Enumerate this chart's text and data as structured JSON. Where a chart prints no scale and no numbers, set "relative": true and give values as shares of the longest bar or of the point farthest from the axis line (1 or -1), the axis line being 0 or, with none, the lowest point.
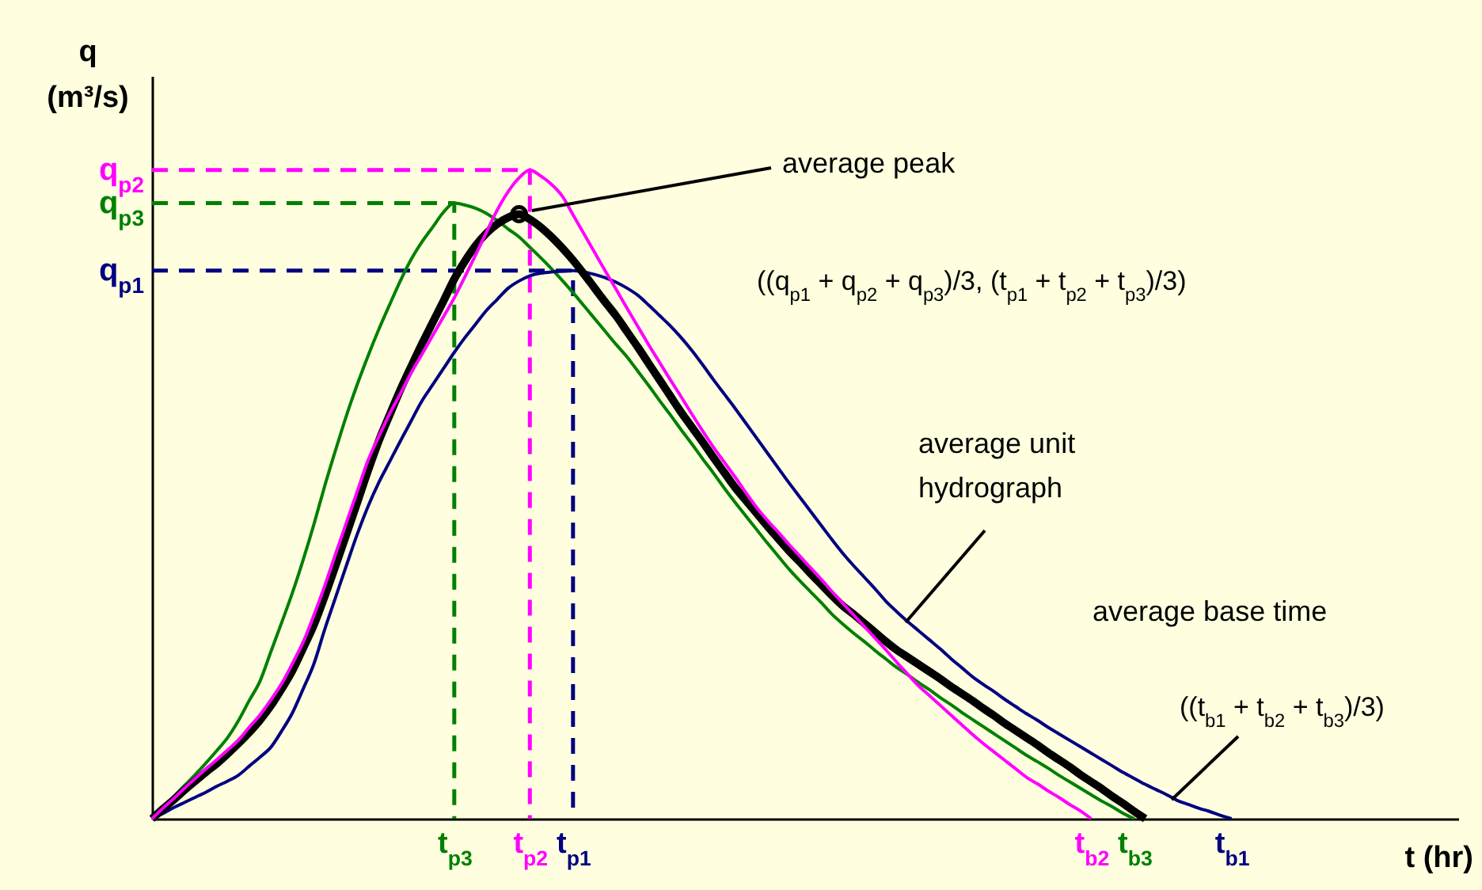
{
  "chart_data": {
    "type": "line",
    "relative": true,
    "xlabel": "t (hr)",
    "ylabel": "q (m³/s)",
    "categories": [
      null,
      null,
      null,
      null,
      null,
      null,
      null,
      null,
      null,
      null,
      null,
      null,
      null,
      null,
      null,
      null,
      null,
      null,
      null,
      null,
      null,
      null,
      null,
      null,
      null,
      null,
      null,
      null,
      "t$_{p3}$",
      null,
      null,
      null,
      null,
      null,
      null,
      "t$_{p2}$",
      null,
      null,
      null,
      "t$_{p1}$",
      null,
      null,
      null,
      null,
      null,
      null,
      null,
      null,
      null,
      null,
      null,
      null,
      null,
      null,
      null,
      null,
      null,
      null,
      null,
      null,
      null,
      null,
      null,
      null,
      null,
      null,
      null,
      null,
      null,
      null,
      null,
      null,
      null,
      null,
      null,
      null,
      null,
      null,
      null,
      null,
      null,
      null,
      null,
      null,
      null,
      null,
      null,
      "t$_{b2}$",
      null,
      null,
      null,
      "t$_{b3}$",
      null,
      null,
      null,
      null,
      null,
      null,
      null,
      null,
      "t$_{b1}$",
      null,
      null,
      null,
      null,
      null,
      null,
      null,
      null,
      null,
      null,
      null,
      null,
      null,
      null,
      null,
      null,
      null,
      null,
      null,
      null,
      null
    ],
    "series": [
      {
        "type": "step",
        "line_style": "dashed",
        "color": "#ff00ff",
        "values": [
          1,
          1,
          1,
          1,
          1,
          1,
          1,
          1,
          1,
          1,
          1,
          1,
          1,
          1,
          1,
          1,
          1,
          1,
          1,
          1,
          1,
          1,
          1,
          1,
          1,
          1,
          1,
          1,
          1,
          1,
          1,
          1,
          1,
          1,
          1,
          0,
          null,
          null,
          null,
          null,
          null,
          null,
          null,
          null,
          null,
          null,
          null,
          null,
          null,
          null,
          null,
          null,
          null,
          null,
          null,
          null,
          null,
          null,
          null,
          null,
          null,
          null,
          null,
          null,
          null,
          null,
          null,
          null,
          null,
          null,
          null,
          null,
          null,
          null,
          null,
          null,
          null,
          null,
          null,
          null,
          null,
          null,
          null,
          null,
          null,
          null,
          null,
          null,
          null,
          null,
          null,
          null,
          null,
          null,
          null,
          null,
          null,
          null,
          null,
          null,
          null,
          null,
          null,
          null,
          null,
          null,
          null,
          null,
          null,
          null,
          null,
          null,
          null,
          null,
          null,
          null,
          null,
          null,
          null,
          null,
          null,
          null
        ]
      },
      {
        "type": "step",
        "line_style": "dashed",
        "color": "#008000",
        "values": [
          0.949,
          0.949,
          0.949,
          0.949,
          0.949,
          0.949,
          0.949,
          0.949,
          0.949,
          0.949,
          0.949,
          0.949,
          0.949,
          0.949,
          0.949,
          0.949,
          0.949,
          0.949,
          0.949,
          0.949,
          0.949,
          0.949,
          0.949,
          0.949,
          0.949,
          0.949,
          0.949,
          0.949,
          0,
          null,
          null,
          null,
          null,
          null,
          null,
          null,
          null,
          null,
          null,
          null,
          null,
          null,
          null,
          null,
          null,
          null,
          null,
          null,
          null,
          null,
          null,
          null,
          null,
          null,
          null,
          null,
          null,
          null,
          null,
          null,
          null,
          null,
          null,
          null,
          null,
          null,
          null,
          null,
          null,
          null,
          null,
          null,
          null,
          null,
          null,
          null,
          null,
          null,
          null,
          null,
          null,
          null,
          null,
          null,
          null,
          null,
          null,
          null,
          null,
          null,
          null,
          null,
          null,
          null,
          null,
          null,
          null,
          null,
          null,
          null,
          null,
          null,
          null,
          null,
          null,
          null,
          null,
          null,
          null,
          null,
          null,
          null,
          null,
          null,
          null,
          null,
          null,
          null,
          null,
          null,
          null,
          null
        ]
      },
      {
        "type": "step",
        "line_style": "dashed",
        "color": "#000080",
        "values": [
          0.845,
          0.845,
          0.845,
          0.845,
          0.845,
          0.845,
          0.845,
          0.845,
          0.845,
          0.845,
          0.845,
          0.845,
          0.845,
          0.845,
          0.845,
          0.845,
          0.845,
          0.845,
          0.845,
          0.845,
          0.845,
          0.845,
          0.845,
          0.845,
          0.845,
          0.845,
          0.845,
          0.845,
          0.845,
          0.845,
          0.845,
          0.845,
          0.845,
          0.845,
          0.845,
          0.845,
          0.845,
          0.845,
          0.845,
          0,
          null,
          null,
          null,
          null,
          null,
          null,
          null,
          null,
          null,
          null,
          null,
          null,
          null,
          null,
          null,
          null,
          null,
          null,
          null,
          null,
          null,
          null,
          null,
          null,
          null,
          null,
          null,
          null,
          null,
          null,
          null,
          null,
          null,
          null,
          null,
          null,
          null,
          null,
          null,
          null,
          null,
          null,
          null,
          null,
          null,
          null,
          null,
          null,
          null,
          null,
          null,
          null,
          null,
          null,
          null,
          null,
          null,
          null,
          null,
          null,
          null,
          null,
          null,
          null,
          null,
          null,
          null,
          null,
          null,
          null,
          null,
          null,
          null,
          null,
          null,
          null,
          null,
          null,
          null,
          null,
          null,
          null
        ]
      },
      {
        "type": "line",
        "color": "#008000",
        "values": [
          0,
          0.017,
          0.034,
          0.051,
          0.068,
          0.086,
          0.105,
          0.125,
          0.151,
          0.182,
          0.212,
          0.257,
          0.302,
          0.348,
          0.399,
          0.454,
          0.513,
          0.568,
          0.621,
          0.669,
          0.713,
          0.754,
          0.792,
          0.829,
          0.862,
          0.889,
          0.912,
          0.935,
          0.949,
          0.946,
          0.941,
          0.933,
          0.922,
          0.909,
          0.897,
          0.881,
          0.865,
          0.848,
          0.83,
          0.811,
          0.791,
          0.771,
          0.751,
          0.731,
          0.712,
          0.69,
          0.668,
          0.645,
          0.623,
          0.6,
          0.578,
          0.555,
          0.533,
          0.51,
          0.488,
          0.467,
          0.446,
          0.425,
          0.405,
          0.385,
          0.367,
          0.35,
          0.333,
          0.315,
          0.3,
          0.286,
          0.273,
          0.259,
          0.246,
          0.233,
          0.222,
          0.21,
          0.199,
          0.187,
          0.176,
          0.164,
          0.153,
          0.142,
          0.131,
          0.12,
          0.109,
          0.098,
          0.088,
          0.078,
          0.067,
          0.057,
          0.047,
          0.037,
          0.027,
          0.018,
          0.008,
          0,
          null,
          null,
          null,
          null,
          null,
          null,
          null,
          null,
          null,
          null,
          null,
          null,
          null,
          null,
          null,
          null,
          null,
          null,
          null,
          null,
          null,
          null,
          null,
          null,
          null,
          null,
          null,
          null,
          null,
          null
        ]
      },
      {
        "type": "line",
        "color": "#000080",
        "values": [
          0,
          0.008,
          0.017,
          0.025,
          0.033,
          0.041,
          0.05,
          0.058,
          0.067,
          0.081,
          0.095,
          0.11,
          0.135,
          0.163,
          0.2,
          0.239,
          0.292,
          0.341,
          0.39,
          0.438,
          0.481,
          0.518,
          0.55,
          0.582,
          0.613,
          0.644,
          0.669,
          0.694,
          0.719,
          0.742,
          0.763,
          0.784,
          0.801,
          0.818,
          0.829,
          0.837,
          0.841,
          0.843,
          0.844,
          0.845,
          0.843,
          0.839,
          0.834,
          0.827,
          0.818,
          0.807,
          0.792,
          0.776,
          0.76,
          0.742,
          0.722,
          0.7,
          0.677,
          0.655,
          0.633,
          0.61,
          0.587,
          0.564,
          0.541,
          0.518,
          0.496,
          0.474,
          0.452,
          0.43,
          0.409,
          0.39,
          0.372,
          0.354,
          0.335,
          0.319,
          0.304,
          0.29,
          0.276,
          0.262,
          0.247,
          0.233,
          0.219,
          0.207,
          0.196,
          0.184,
          0.173,
          0.162,
          0.152,
          0.141,
          0.131,
          0.121,
          0.111,
          0.101,
          0.091,
          0.081,
          0.071,
          0.062,
          0.053,
          0.045,
          0.037,
          0.028,
          0.022,
          0.016,
          0.011,
          0.005,
          0,
          null,
          null,
          null,
          null,
          null,
          null,
          null,
          null,
          null,
          null,
          null,
          null,
          null,
          null,
          null,
          null,
          null,
          null,
          null,
          null,
          null
        ]
      },
      {
        "type": "line",
        "color": "#000000",
        "values": [
          0,
          0.015,
          0.029,
          0.044,
          0.058,
          0.072,
          0.085,
          0.1,
          0.116,
          0.133,
          0.152,
          0.174,
          0.2,
          0.228,
          0.263,
          0.299,
          0.343,
          0.39,
          0.438,
          0.487,
          0.536,
          0.582,
          0.622,
          0.661,
          0.697,
          0.732,
          0.765,
          0.798,
          0.832,
          0.86,
          0.884,
          0.903,
          0.917,
          0.927,
          0.932,
          0.924,
          0.912,
          0.897,
          0.88,
          0.861,
          0.84,
          0.818,
          0.796,
          0.775,
          0.751,
          0.727,
          0.702,
          0.677,
          0.652,
          0.627,
          0.604,
          0.581,
          0.557,
          0.534,
          0.511,
          0.491,
          0.471,
          0.451,
          0.432,
          0.413,
          0.396,
          0.378,
          0.361,
          0.344,
          0.328,
          0.315,
          0.301,
          0.287,
          0.273,
          0.26,
          0.249,
          0.238,
          0.227,
          0.216,
          0.204,
          0.193,
          0.182,
          0.17,
          0.159,
          0.147,
          0.136,
          0.125,
          0.114,
          0.102,
          0.091,
          0.08,
          0.068,
          0.057,
          0.046,
          0.034,
          0.023,
          0.011,
          0,
          null,
          null,
          null,
          null,
          null,
          null,
          null,
          null,
          null,
          null,
          null,
          null,
          null,
          null,
          null,
          null,
          null,
          null,
          null,
          null,
          null,
          null,
          null,
          null,
          null,
          null,
          null,
          null,
          null
        ]
      },
      {
        "type": "line",
        "color": "#ff00ff",
        "values": [
          0,
          0.016,
          0.031,
          0.047,
          0.062,
          0.077,
          0.091,
          0.106,
          0.121,
          0.141,
          0.16,
          0.183,
          0.208,
          0.239,
          0.272,
          0.314,
          0.359,
          0.408,
          0.456,
          0.504,
          0.552,
          0.589,
          0.624,
          0.655,
          0.687,
          0.716,
          0.745,
          0.774,
          0.803,
          0.836,
          0.87,
          0.905,
          0.939,
          0.967,
          0.988,
          1,
          0.991,
          0.978,
          0.96,
          0.931,
          0.902,
          0.873,
          0.844,
          0.816,
          0.787,
          0.759,
          0.731,
          0.704,
          0.677,
          0.651,
          0.624,
          0.598,
          0.573,
          0.55,
          0.527,
          0.503,
          0.48,
          0.46,
          0.442,
          0.423,
          0.405,
          0.387,
          0.369,
          0.35,
          0.332,
          0.314,
          0.296,
          0.278,
          0.26,
          0.241,
          0.223,
          0.205,
          0.19,
          0.175,
          0.16,
          0.145,
          0.13,
          0.116,
          0.103,
          0.09,
          0.077,
          0.064,
          0.054,
          0.043,
          0.033,
          0.022,
          0.012,
          0,
          null,
          null,
          null,
          null,
          null,
          null,
          null,
          null,
          null,
          null,
          null,
          null,
          null,
          null,
          null,
          null,
          null,
          null,
          null,
          null,
          null,
          null,
          null,
          null,
          null,
          null,
          null,
          null,
          null,
          null,
          null,
          null,
          null,
          null
        ]
      },
      {
        "type": "scatter",
        "marker": "circle",
        "color": "#000000",
        "values": [
          null,
          null,
          null,
          null,
          null,
          null,
          null,
          null,
          null,
          null,
          null,
          null,
          null,
          null,
          null,
          null,
          null,
          null,
          null,
          null,
          null,
          null,
          null,
          null,
          null,
          null,
          null,
          null,
          null,
          null,
          null,
          null,
          null,
          null,
          0.932,
          null,
          null,
          null,
          null,
          null,
          null,
          null,
          null,
          null,
          null,
          null,
          null,
          null,
          null,
          null,
          null,
          null,
          null,
          null,
          null,
          null,
          null,
          null,
          null,
          null,
          null,
          null,
          null,
          null,
          null,
          null,
          null,
          null,
          null,
          null,
          null,
          null,
          null,
          null,
          null,
          null,
          null,
          null,
          null,
          null,
          null,
          null,
          null,
          null,
          null,
          null,
          null,
          null,
          null,
          null,
          null,
          null,
          null,
          null,
          null,
          null,
          null,
          null,
          null,
          null,
          null,
          null,
          null,
          null,
          null,
          null,
          null,
          null,
          null,
          null,
          null,
          null,
          null,
          null,
          null,
          null,
          null,
          null,
          null,
          null,
          null,
          null
        ]
      }
    ],
    "annotations": [
      "q$_{p2}$",
      "q$_{p3}$",
      "q$_{p1}$",
      "average peak",
      "((q$_{p1}$ + q$_{p2}$ + q$_{p3}$)/3, (t$_{p1}$ + t$_{p2}$ + t$_{p3}$)/3)",
      "average unit hydrograph",
      "average base time",
      "((t$_{b1}$ + t$_{b2}$ + t$_{b3}$)/3)"
    ]
  }
}
